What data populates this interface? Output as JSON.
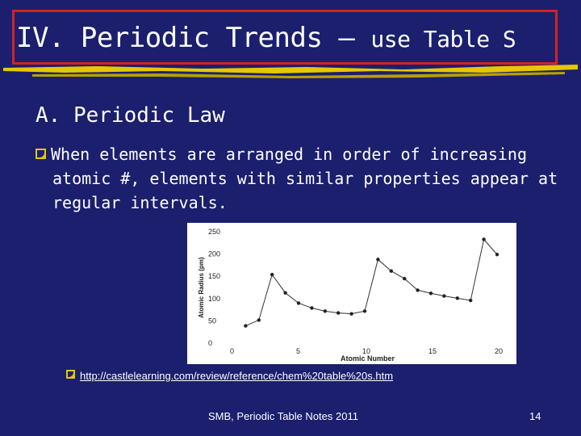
{
  "slide": {
    "title_main": "IV. Periodic Trends",
    "title_dash": " – ",
    "title_tail": "use Table S",
    "heading": "A. Periodic Law",
    "bullet_line1": "When elements are arranged in order of increasing",
    "bullet_line2": "atomic #, elements with similar properties appear at",
    "bullet_line3": "regular intervals.",
    "link": "http://castlelearning.com/review/reference/chem%20table%20s.htm",
    "footer": "SMB, Periodic Table Notes 2011",
    "page_number": "14"
  },
  "colors": {
    "background": "#1b1f6e",
    "title_border": "#d42222",
    "accent_underline": "#e6c800",
    "text": "#ffffff"
  },
  "icons": {
    "bullet": "q-square-bullet-icon"
  },
  "chart_data": {
    "type": "line",
    "xlabel": "Atomic Number",
    "ylabel": "Atomic Radius (pm)",
    "xlim": [
      0,
      20
    ],
    "ylim": [
      0,
      250
    ],
    "x_ticks": [
      "0",
      "5",
      "10",
      "15",
      "20"
    ],
    "y_ticks": [
      "0",
      "50",
      "100",
      "150",
      "200",
      "250"
    ],
    "x": [
      1,
      2,
      3,
      4,
      5,
      6,
      7,
      8,
      9,
      10,
      11,
      12,
      13,
      14,
      15,
      16,
      17,
      18,
      19,
      20
    ],
    "values": [
      37,
      50,
      152,
      111,
      88,
      77,
      70,
      66,
      64,
      70,
      186,
      160,
      143,
      117,
      110,
      104,
      99,
      94,
      231,
      197
    ]
  }
}
